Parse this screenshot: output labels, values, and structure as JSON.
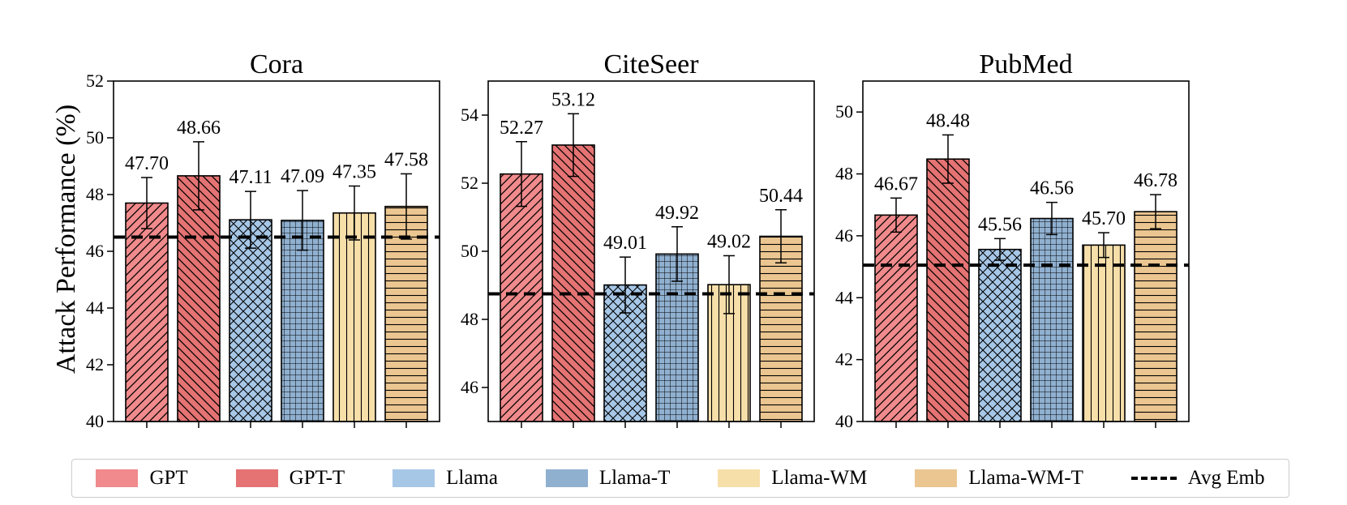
{
  "ylabel": "Attack Performance (%)",
  "chart_data": [
    {
      "type": "bar",
      "title": "Cora",
      "categories": [
        "GPT",
        "GPT-T",
        "Llama",
        "Llama-T",
        "Llama-WM",
        "Llama-WM-T"
      ],
      "values": [
        47.7,
        48.66,
        47.11,
        47.09,
        47.35,
        47.58
      ],
      "value_labels": [
        "47.70",
        "48.66",
        "47.11",
        "47.09",
        "47.35",
        "47.58"
      ],
      "errors": [
        0.9,
        1.2,
        1.0,
        1.05,
        0.95,
        1.15
      ],
      "baseline": 46.5,
      "ylim": [
        40,
        52
      ],
      "yticks": [
        40,
        42,
        44,
        46,
        48,
        50,
        52
      ]
    },
    {
      "type": "bar",
      "title": "CiteSeer",
      "categories": [
        "GPT",
        "GPT-T",
        "Llama",
        "Llama-T",
        "Llama-WM",
        "Llama-WM-T"
      ],
      "values": [
        52.27,
        53.12,
        49.01,
        49.92,
        49.02,
        50.44
      ],
      "value_labels": [
        "52.27",
        "53.12",
        "49.01",
        "49.92",
        "49.02",
        "50.44"
      ],
      "errors": [
        0.95,
        0.92,
        0.82,
        0.8,
        0.85,
        0.78
      ],
      "baseline": 48.75,
      "ylim": [
        45,
        55
      ],
      "yticks": [
        46,
        48,
        50,
        52,
        54
      ]
    },
    {
      "type": "bar",
      "title": "PubMed",
      "categories": [
        "GPT",
        "GPT-T",
        "Llama",
        "Llama-T",
        "Llama-WM",
        "Llama-WM-T"
      ],
      "values": [
        46.67,
        48.48,
        45.56,
        46.56,
        45.7,
        46.78
      ],
      "value_labels": [
        "46.67",
        "48.48",
        "45.56",
        "46.56",
        "45.70",
        "46.78"
      ],
      "errors": [
        0.55,
        0.78,
        0.35,
        0.52,
        0.4,
        0.55
      ],
      "baseline": 45.05,
      "ylim": [
        40,
        51
      ],
      "yticks": [
        40,
        42,
        44,
        46,
        48,
        50
      ]
    }
  ],
  "legend": {
    "position": "bottom",
    "items": [
      {
        "label": "GPT",
        "color": "#f08a8c"
      },
      {
        "label": "GPT-T",
        "color": "#e57373"
      },
      {
        "label": "Llama",
        "color": "#a7c7e7"
      },
      {
        "label": "Llama-T",
        "color": "#90b0d0"
      },
      {
        "label": "Llama-WM",
        "color": "#f7dfaa"
      },
      {
        "label": "Llama-WM-T",
        "color": "#ebc691"
      }
    ],
    "baseline_label": "Avg Emb"
  },
  "bar_styles": [
    {
      "color": "#f08a8c",
      "hatch": "fwd-diag"
    },
    {
      "color": "#e57373",
      "hatch": "back-diag"
    },
    {
      "color": "#a7c7e7",
      "hatch": "cross-diag"
    },
    {
      "color": "#90b0d0",
      "hatch": "grid"
    },
    {
      "color": "#f7dfaa",
      "hatch": "vertical"
    },
    {
      "color": "#ebc691",
      "hatch": "horizontal"
    }
  ]
}
